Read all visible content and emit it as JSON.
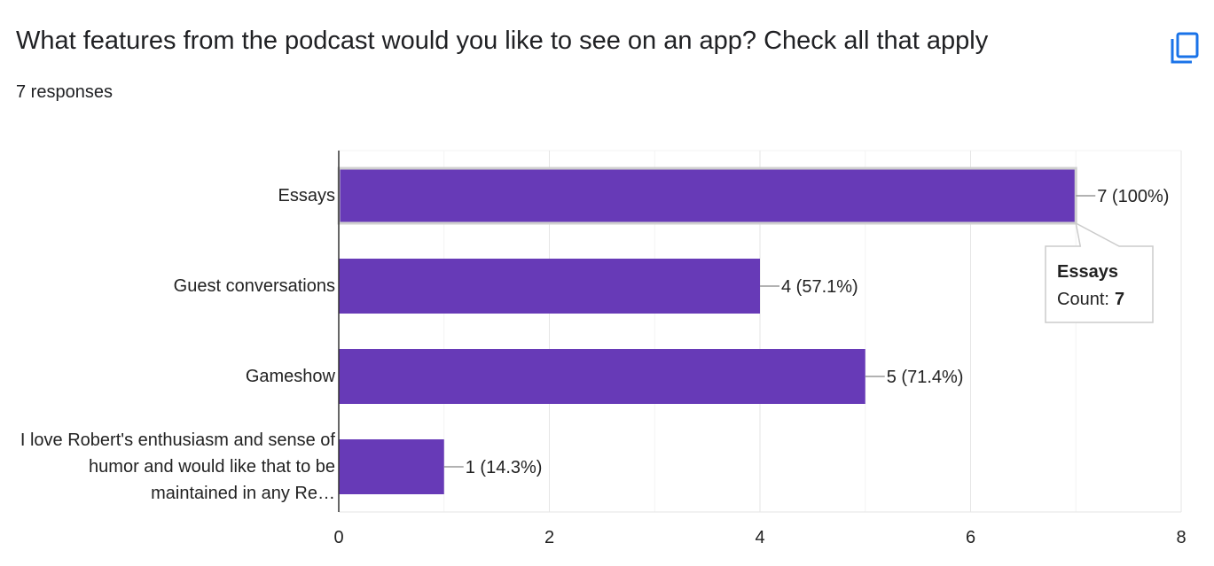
{
  "header": {
    "title": "What features from the podcast would you like to see on an app? Check all that apply",
    "subtitle": "7 responses"
  },
  "chart_data": {
    "type": "bar",
    "orientation": "horizontal",
    "categories": [
      "Essays",
      "Guest conversations",
      "Gameshow",
      "I love Robert's enthusiasm and sense of humor and would like that to be maintained in any Re…"
    ],
    "values": [
      7,
      4,
      5,
      1
    ],
    "value_labels": [
      "7 (100%)",
      "4 (57.1%)",
      "5 (71.4%)",
      "1 (14.3%)"
    ],
    "color": "#673ab7",
    "xlim": [
      0,
      8
    ],
    "xticks": [
      0,
      2,
      4,
      6,
      8
    ],
    "grid": true,
    "tooltip": {
      "label": "Count:"
    }
  }
}
